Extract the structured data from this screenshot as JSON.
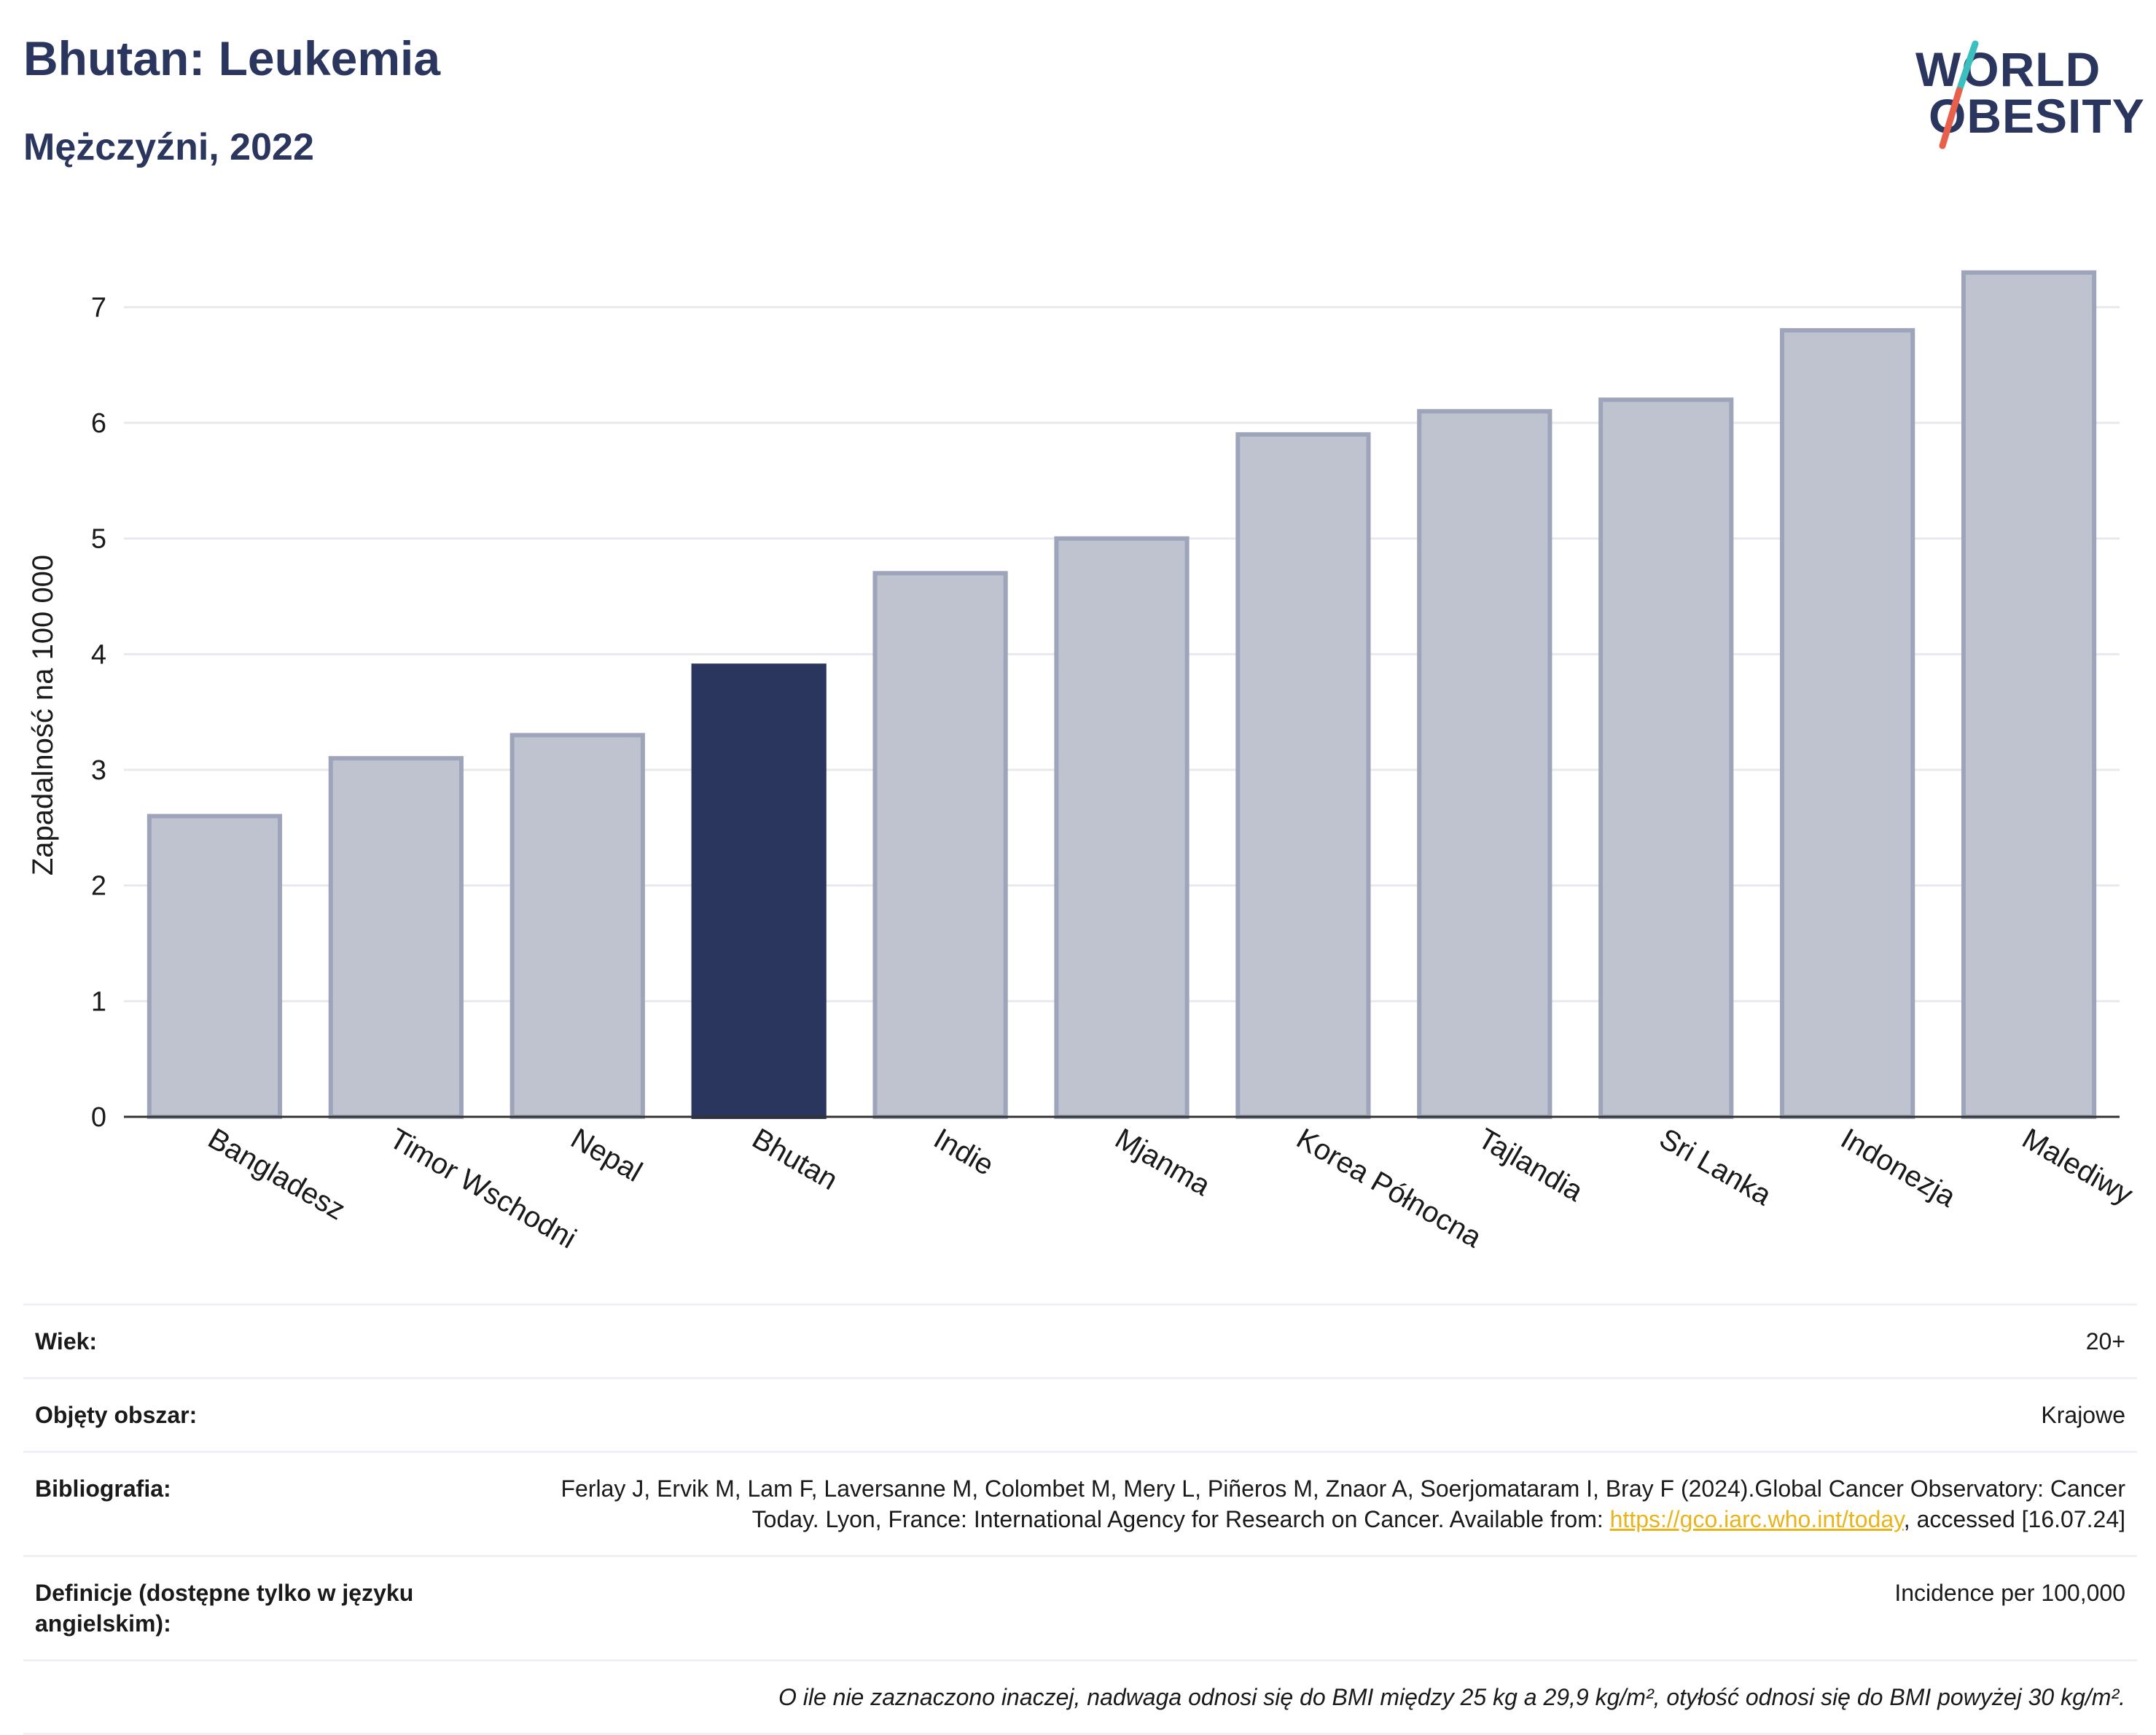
{
  "header": {
    "title": "Bhutan: Leukemia",
    "subtitle": "Mężczyźni, 2022"
  },
  "logo": {
    "line1": "WORLD",
    "line2": "OBESITY",
    "colors": {
      "text": "#2b365e",
      "slash_top": "#3bbfbf",
      "slash_bottom": "#e8604c"
    }
  },
  "chart_data": {
    "type": "bar",
    "categories": [
      "Bangladesz",
      "Timor Wschodni",
      "Nepal",
      "Bhutan",
      "Indie",
      "Mjanma",
      "Korea Północna",
      "Tajlandia",
      "Sri Lanka",
      "Indonezja",
      "Malediwy"
    ],
    "values": [
      2.6,
      3.1,
      3.3,
      3.9,
      4.7,
      5.0,
      5.9,
      6.1,
      6.2,
      6.8,
      7.3
    ],
    "highlight": "Bhutan",
    "ylabel": "Zapadalność na 100 000",
    "xlabel": "",
    "ylim": [
      0,
      7.45
    ],
    "yticks": [
      0,
      1,
      2,
      3,
      4,
      5,
      6,
      7
    ],
    "grid": true,
    "colors": {
      "bar": "#bfc3d0",
      "bar_border": "#9ea4ba",
      "highlight": "#2b365e",
      "grid": "#e8e9ee",
      "axis": "#333333"
    }
  },
  "meta": {
    "age_label": "Wiek:",
    "age_value": "20+",
    "coverage_label": "Objęty obszar:",
    "coverage_value": "Krajowe",
    "bibliography_label": "Bibliografia:",
    "bibliography_text_1": "Ferlay J, Ervik M, Lam F, Laversanne M, Colombet M, Mery L, Piñeros M, Znaor A, Soerjomataram I, Bray F (2024).Global Cancer Observatory: Cancer Today. Lyon, France: International Agency for Research on Cancer. Available from: ",
    "bibliography_link": "https://gco.iarc.who.int/today",
    "bibliography_text_2": ", accessed [16.07.24]",
    "definitions_label": "Definicje (dostępne tylko w języku angielskim):",
    "definitions_value": "Incidence per 100,000",
    "note": "O ile nie zaznaczono inaczej, nadwaga odnosi się do BMI między 25 kg a 29,9 kg/m², otyłość odnosi się do BMI powyżej 30 kg/m²."
  }
}
